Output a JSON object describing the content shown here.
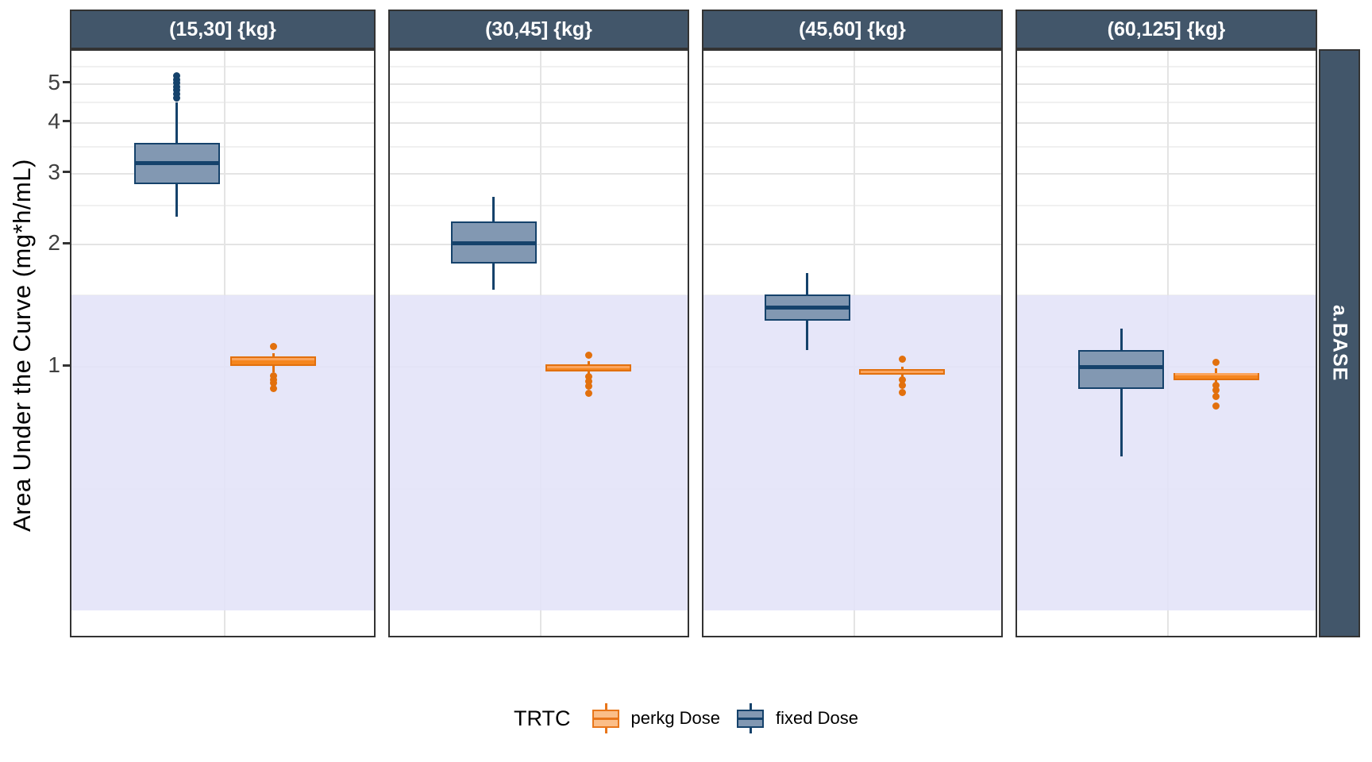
{
  "chart_data": {
    "type": "boxplot",
    "ylabel": "Area Under the Curve (mg*h/mL)",
    "yscale": "log10",
    "yticks": [
      5,
      4,
      3,
      2,
      1
    ],
    "ylim": [
      0.21,
      6.0
    ],
    "grid": "on",
    "facet_strip_right": "a.BASE",
    "reference_band": {
      "ymin": 0.25,
      "ymax": 1.5,
      "color": "#E2E2F8"
    },
    "legend": {
      "title": "TRTC",
      "position": "bottom",
      "items": [
        {
          "label": "perkg Dose",
          "fill": "#FBBE88",
          "border": "#E8761B",
          "median": "#E8761B"
        },
        {
          "label": "fixed Dose",
          "fill": "#8298B2",
          "border": "#15426B",
          "median": "#15426B"
        }
      ]
    },
    "series_colors": {
      "fixed": {
        "fill": "#8298B2",
        "border": "#15426B",
        "median": "#15426B"
      },
      "perkg": {
        "fill": "#F5861F",
        "border": "#E2700D",
        "median": "#FBA45C"
      }
    },
    "strip_bg": "#42566A",
    "facets": [
      {
        "label": "(15,30] {kg}",
        "boxes": [
          {
            "name": "fixed Dose",
            "whisker_low": 2.35,
            "q1": 2.82,
            "median": 3.18,
            "q3": 3.58,
            "whisker_high": 4.5,
            "outliers_high": [
              4.62,
              4.72,
              4.82,
              4.92,
              5.02,
              5.12,
              5.22
            ],
            "outliers_low": []
          },
          {
            "name": "perkg Dose",
            "whisker_low": 0.97,
            "q1": 1.005,
            "median": 1.045,
            "q3": 1.06,
            "whisker_high": 1.08,
            "outliers_high": [
              1.12
            ],
            "outliers_low": [
              0.95,
              0.93,
              0.91,
              0.885
            ]
          }
        ]
      },
      {
        "label": "(30,45] {kg}",
        "boxes": [
          {
            "name": "fixed Dose",
            "whisker_low": 1.55,
            "q1": 1.8,
            "median": 2.02,
            "q3": 2.28,
            "whisker_high": 2.63,
            "outliers_high": [],
            "outliers_low": []
          },
          {
            "name": "perkg Dose",
            "whisker_low": 0.955,
            "q1": 0.973,
            "median": 1.0,
            "q3": 1.015,
            "whisker_high": 1.03,
            "outliers_high": [
              1.07
            ],
            "outliers_low": [
              0.945,
              0.92,
              0.895,
              0.86
            ]
          }
        ]
      },
      {
        "label": "(45,60] {kg}",
        "boxes": [
          {
            "name": "fixed Dose",
            "whisker_low": 1.1,
            "q1": 1.3,
            "median": 1.4,
            "q3": 1.51,
            "whisker_high": 1.7,
            "outliers_high": [],
            "outliers_low": []
          },
          {
            "name": "perkg Dose",
            "whisker_low": 0.94,
            "q1": 0.956,
            "median": 0.973,
            "q3": 0.987,
            "whisker_high": 1.0,
            "outliers_high": [
              1.045
            ],
            "outliers_low": [
              0.93,
              0.9,
              0.865
            ]
          }
        ]
      },
      {
        "label": "(60,125] {kg}",
        "boxes": [
          {
            "name": "fixed Dose",
            "whisker_low": 0.6,
            "q1": 0.88,
            "median": 1.0,
            "q3": 1.1,
            "whisker_high": 1.24,
            "outliers_high": [],
            "outliers_low": []
          },
          {
            "name": "perkg Dose",
            "whisker_low": 0.905,
            "q1": 0.925,
            "median": 0.956,
            "q3": 0.966,
            "whisker_high": 0.99,
            "outliers_high": [
              1.023
            ],
            "outliers_low": [
              0.9,
              0.875,
              0.845,
              0.8
            ]
          }
        ]
      }
    ]
  }
}
